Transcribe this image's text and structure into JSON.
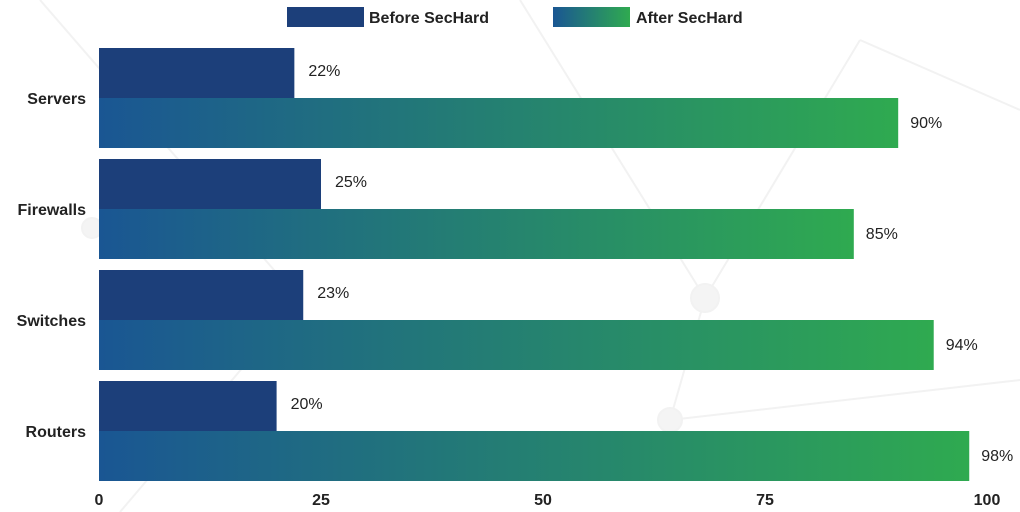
{
  "chart_data": {
    "type": "bar",
    "orientation": "horizontal",
    "categories": [
      "Servers",
      "Firewalls",
      "Switches",
      "Routers"
    ],
    "series": [
      {
        "name": "Before SecHard",
        "values": [
          22,
          25,
          23,
          20
        ],
        "value_suffix": "%",
        "color": "#1c3f7a"
      },
      {
        "name": "After SecHard",
        "values": [
          90,
          85,
          94,
          98
        ],
        "value_suffix": "%",
        "gradient": [
          "#1a5693",
          "#2faa50"
        ]
      }
    ],
    "xlim": [
      0,
      100
    ],
    "xticks": [
      0,
      25,
      50,
      75,
      100
    ],
    "title": "",
    "xlabel": "",
    "ylabel": "",
    "grid": false,
    "legend": "top-center"
  }
}
